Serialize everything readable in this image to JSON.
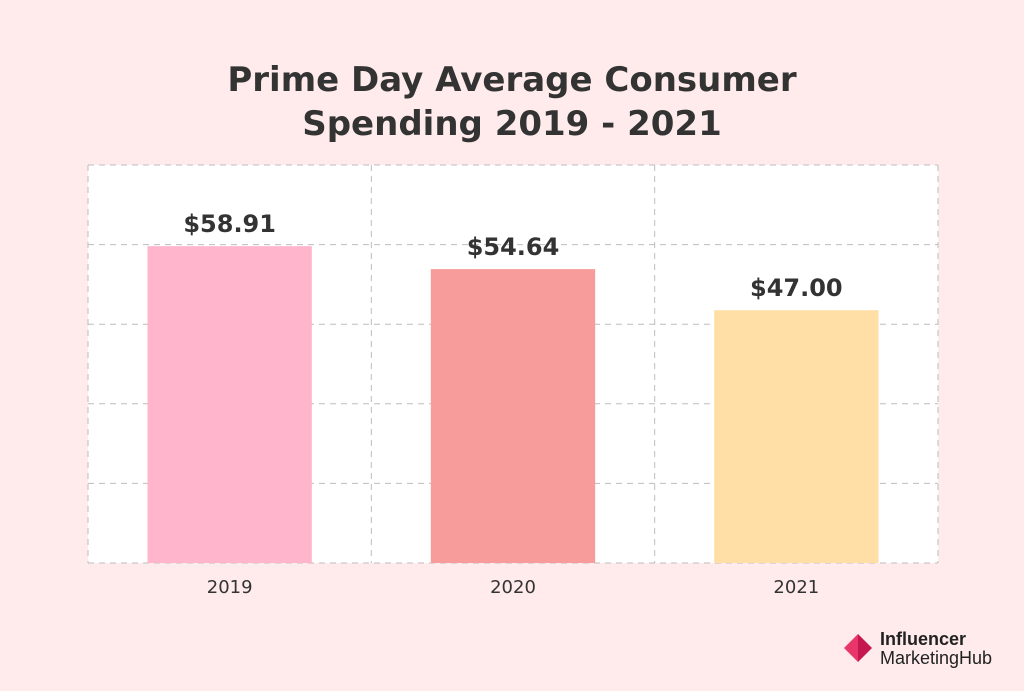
{
  "chart_data": {
    "type": "bar",
    "title": "Prime Day Average Consumer Spending 2019 - 2021",
    "title_lines": [
      "Prime Day Average Consumer",
      "Spending 2019 - 2021"
    ],
    "categories": [
      "2019",
      "2020",
      "2021"
    ],
    "values": [
      58.91,
      54.64,
      47.0
    ],
    "data_labels": [
      "$58.91",
      "$54.64",
      "$47.00"
    ],
    "bar_colors": [
      "#FFB5CC",
      "#F79B9B",
      "#FFDFA6"
    ],
    "ylim": [
      0,
      74
    ],
    "grid": true,
    "legend": "none",
    "xlabel": "",
    "ylabel": ""
  },
  "branding": {
    "line1": "Influencer",
    "line2": "MarketingHub",
    "icon": "influencer-marketing-hub-logo-icon",
    "colors": [
      "#E8366B",
      "#C4164F"
    ]
  }
}
